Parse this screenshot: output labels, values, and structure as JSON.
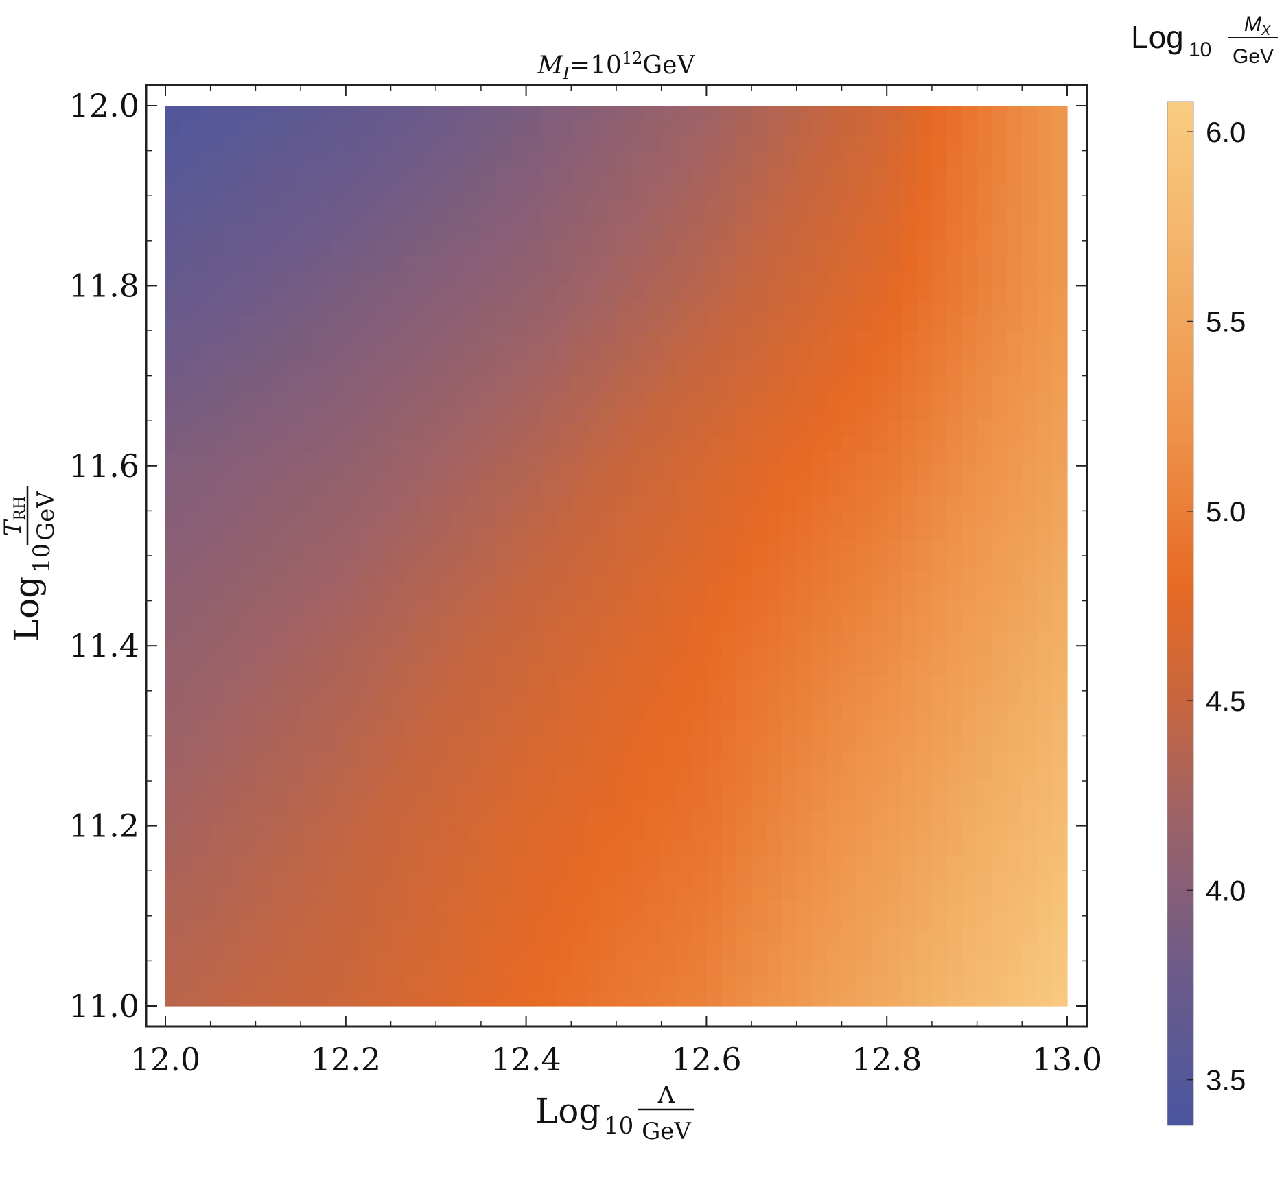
{
  "chart_data": {
    "type": "heatmap",
    "title": {
      "symbol": "M",
      "subscript": "I",
      "equals": "=",
      "base": "10",
      "exponent": "12",
      "unit": "GeV"
    },
    "xlabel": {
      "log": "Log",
      "base": "10",
      "numerator": "Λ",
      "denominator": "GeV"
    },
    "ylabel": {
      "log": "Log",
      "base": "10",
      "numerator_symbol": "T",
      "numerator_subscript": "RH",
      "denominator": "GeV"
    },
    "xlim": [
      12.0,
      13.0
    ],
    "ylim": [
      11.0,
      12.0
    ],
    "x_ticks": [
      "12.0",
      "12.2",
      "12.4",
      "12.6",
      "12.8",
      "13.0"
    ],
    "y_ticks": [
      "11.0",
      "11.2",
      "11.4",
      "11.6",
      "11.8",
      "12.0"
    ],
    "x_tick_values": [
      12.0,
      12.2,
      12.4,
      12.6,
      12.8,
      13.0
    ],
    "y_tick_values": [
      11.0,
      11.2,
      11.4,
      11.6,
      11.8,
      12.0
    ],
    "corner_values": {
      "x12.0_y12.0": 3.45,
      "x13.0_y12.0": 5.3,
      "x12.0_y11.0": 4.4,
      "x13.0_y11.0": 6.05
    },
    "value_field": {
      "x": [
        12.0,
        12.2,
        12.4,
        12.6,
        12.8,
        13.0
      ],
      "y": [
        11.0,
        11.2,
        11.4,
        11.6,
        11.8,
        12.0
      ],
      "z": [
        [
          4.4,
          4.55,
          4.8,
          5.05,
          5.55,
          6.05
        ],
        [
          4.25,
          4.45,
          4.7,
          4.9,
          5.35,
          5.85
        ],
        [
          4.1,
          4.3,
          4.55,
          4.8,
          5.15,
          5.65
        ],
        [
          3.95,
          4.1,
          4.35,
          4.65,
          4.95,
          5.45
        ],
        [
          3.7,
          3.9,
          4.1,
          4.4,
          4.75,
          5.3
        ],
        [
          3.45,
          3.65,
          3.9,
          4.2,
          4.6,
          5.3
        ]
      ]
    },
    "colorbar": {
      "label": {
        "log": "Log",
        "base": "10",
        "numerator_symbol": "M",
        "numerator_subscript": "X",
        "denominator": "GeV"
      },
      "range": [
        3.38,
        6.08
      ],
      "ticks": [
        "3.5",
        "4.0",
        "4.5",
        "5.0",
        "5.5",
        "6.0"
      ],
      "tick_values": [
        3.5,
        4.0,
        4.5,
        5.0,
        5.5,
        6.0
      ],
      "color_stops": [
        {
          "value": 3.38,
          "color": "#4a56a0"
        },
        {
          "value": 3.8,
          "color": "#6e5b88"
        },
        {
          "value": 4.2,
          "color": "#9e6266"
        },
        {
          "value": 4.5,
          "color": "#c7663e"
        },
        {
          "value": 4.8,
          "color": "#e66a24"
        },
        {
          "value": 5.2,
          "color": "#ee9148"
        },
        {
          "value": 5.6,
          "color": "#f2ad64"
        },
        {
          "value": 6.08,
          "color": "#f8cc82"
        }
      ]
    },
    "grid": false,
    "legend": "colorbar-right"
  }
}
